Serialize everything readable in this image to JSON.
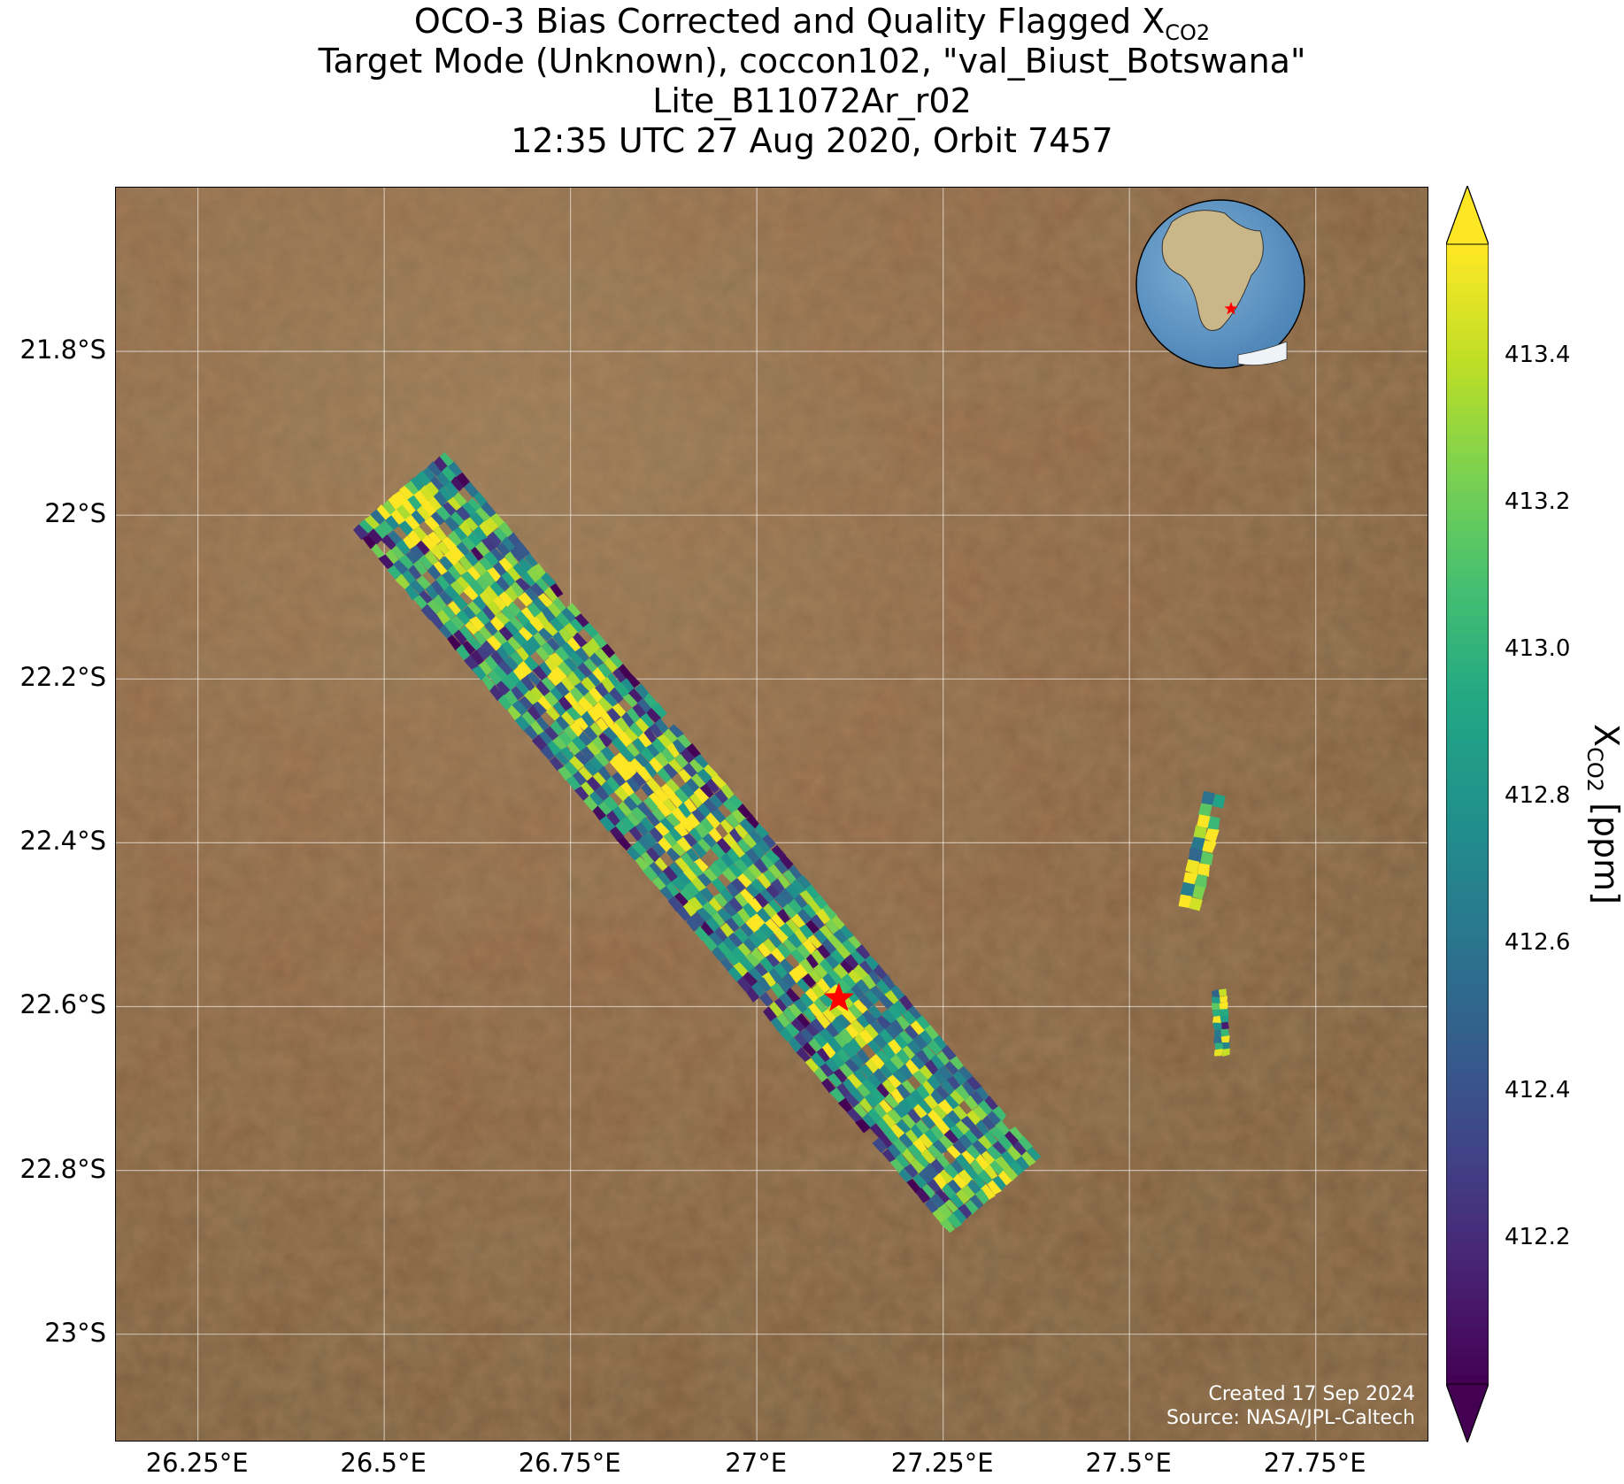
{
  "title": {
    "line1_prefix": "OCO-3 Bias Corrected and Quality Flagged X",
    "line1_sub": "CO2",
    "line2": "Target Mode (Unknown), coccon102, \"val_Biust_Botswana\"",
    "line3": "Lite_B11072Ar_r02",
    "line4": "12:35 UTC 27 Aug 2020, Orbit 7457"
  },
  "map": {
    "lon_range": [
      26.14,
      27.9
    ],
    "lat_range": [
      -23.13,
      -21.6
    ],
    "x_ticks": [
      {
        "value": 26.25,
        "label": "26.25°E"
      },
      {
        "value": 26.5,
        "label": "26.5°E"
      },
      {
        "value": 26.75,
        "label": "26.75°E"
      },
      {
        "value": 27.0,
        "label": "27°E"
      },
      {
        "value": 27.25,
        "label": "27.25°E"
      },
      {
        "value": 27.5,
        "label": "27.5°E"
      },
      {
        "value": 27.75,
        "label": "27.75°E"
      }
    ],
    "y_ticks": [
      {
        "value": -21.8,
        "label": "21.8°S"
      },
      {
        "value": -22.0,
        "label": "22°S"
      },
      {
        "value": -22.2,
        "label": "22.2°S"
      },
      {
        "value": -22.4,
        "label": "22.4°S"
      },
      {
        "value": -22.6,
        "label": "22.6°S"
      },
      {
        "value": -22.8,
        "label": "22.8°S"
      },
      {
        "value": -23.0,
        "label": "23°S"
      }
    ],
    "site_marker": {
      "lon": 27.11,
      "lat": -22.59,
      "color": "#ff0000",
      "icon": "star-icon"
    },
    "swath_main": {
      "start": {
        "lon": 26.52,
        "lat": -21.97
      },
      "end": {
        "lon": 27.32,
        "lat": -22.83
      },
      "width_deg": 0.16
    },
    "swath_small": [
      {
        "start": {
          "lon": 27.615,
          "lat": -22.34
        },
        "end": {
          "lon": 27.58,
          "lat": -22.48
        },
        "width_deg": 0.03
      },
      {
        "start": {
          "lon": 27.62,
          "lat": -22.58
        },
        "end": {
          "lon": 27.625,
          "lat": -22.66
        },
        "width_deg": 0.02
      }
    ],
    "credits": [
      "Created 17 Sep 2024",
      "Source: NASA/JPL-Caltech"
    ],
    "inset_globe": {
      "icon": "globe-inset-icon",
      "marker_color": "#ff0000"
    }
  },
  "colorbar": {
    "label_prefix": "X",
    "label_sub": "CO2",
    "label_suffix": " [ppm]",
    "vmin": 412.0,
    "vmax": 413.55,
    "ticks": [
      {
        "value": 412.2,
        "label": "412.2"
      },
      {
        "value": 412.4,
        "label": "412.4"
      },
      {
        "value": 412.6,
        "label": "412.6"
      },
      {
        "value": 412.8,
        "label": "412.8"
      },
      {
        "value": 413.0,
        "label": "413.0"
      },
      {
        "value": 413.2,
        "label": "413.2"
      },
      {
        "value": 413.4,
        "label": "413.4"
      }
    ],
    "colormap": "viridis",
    "extend": "both"
  }
}
